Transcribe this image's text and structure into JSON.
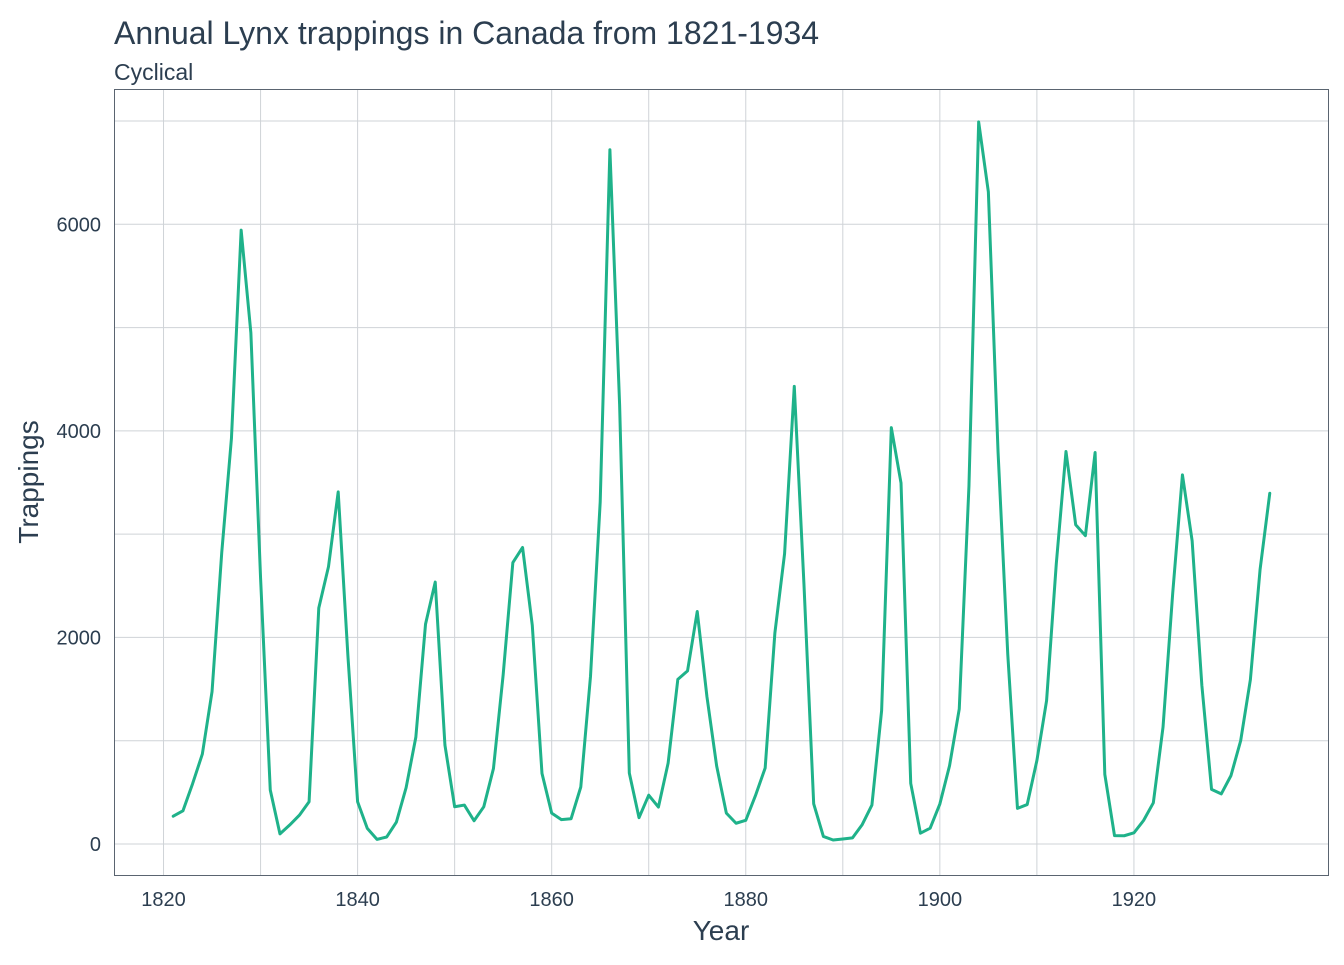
{
  "chart_data": {
    "type": "line",
    "title": "Annual Lynx trappings in Canada from 1821-1934",
    "subtitle": "Cyclical",
    "xlabel": "Year",
    "ylabel": "Trappings",
    "xlim": [
      1815,
      1940
    ],
    "ylim": [
      -300,
      7300
    ],
    "xticks": [
      1820,
      1840,
      1860,
      1880,
      1900,
      1920
    ],
    "xtick_labels": [
      "1820",
      "1840",
      "1860",
      "1880",
      "1900",
      "1920"
    ],
    "yticks": [
      0,
      2000,
      4000,
      6000
    ],
    "ytick_labels": [
      "0",
      "2000",
      "4000",
      "6000"
    ],
    "grid": true,
    "legend": "none",
    "line_color": "#1fb28a",
    "series": [
      {
        "x": [
          1821,
          1822,
          1823,
          1824,
          1825,
          1826,
          1827,
          1828,
          1829,
          1830,
          1831,
          1832,
          1833,
          1834,
          1835,
          1836,
          1837,
          1838,
          1839,
          1840,
          1841,
          1842,
          1843,
          1844,
          1845,
          1846,
          1847,
          1848,
          1849,
          1850,
          1851,
          1852,
          1853,
          1854,
          1855,
          1856,
          1857,
          1858,
          1859,
          1860,
          1861,
          1862,
          1863,
          1864,
          1865,
          1866,
          1867,
          1868,
          1869,
          1870,
          1871,
          1872,
          1873,
          1874,
          1875,
          1876,
          1877,
          1878,
          1879,
          1880,
          1881,
          1882,
          1883,
          1884,
          1885,
          1886,
          1887,
          1888,
          1889,
          1890,
          1891,
          1892,
          1893,
          1894,
          1895,
          1896,
          1897,
          1898,
          1899,
          1900,
          1901,
          1902,
          1903,
          1904,
          1905,
          1906,
          1907,
          1908,
          1909,
          1910,
          1911,
          1912,
          1913,
          1914,
          1915,
          1916,
          1917,
          1918,
          1919,
          1920,
          1921,
          1922,
          1923,
          1924,
          1925,
          1926,
          1927,
          1928,
          1929,
          1930,
          1931,
          1932,
          1933,
          1934
        ],
        "values": [
          269,
          321,
          585,
          871,
          1475,
          2821,
          3928,
          5943,
          4950,
          2577,
          523,
          98,
          184,
          279,
          409,
          2285,
          2685,
          3409,
          1824,
          409,
          151,
          45,
          68,
          213,
          546,
          1033,
          2129,
          2536,
          957,
          361,
          377,
          225,
          360,
          731,
          1638,
          2725,
          2871,
          2119,
          684,
          299,
          236,
          245,
          552,
          1623,
          3311,
          6721,
          4254,
          687,
          255,
          473,
          358,
          784,
          1594,
          1676,
          2251,
          1426,
          756,
          299,
          201,
          229,
          469,
          736,
          2042,
          2811,
          4431,
          2511,
          389,
          73,
          39,
          49,
          59,
          188,
          377,
          1292,
          4031,
          3495,
          587,
          105,
          153,
          387,
          758,
          1307,
          3465,
          6991,
          6313,
          3794,
          1836,
          345,
          382,
          808,
          1388,
          2713,
          3800,
          3091,
          2985,
          3790,
          674,
          81,
          80,
          108,
          229,
          399,
          1132,
          2432,
          3574,
          2935,
          1537,
          529,
          485,
          662,
          1000,
          1590,
          2657,
          3396
        ]
      }
    ]
  }
}
